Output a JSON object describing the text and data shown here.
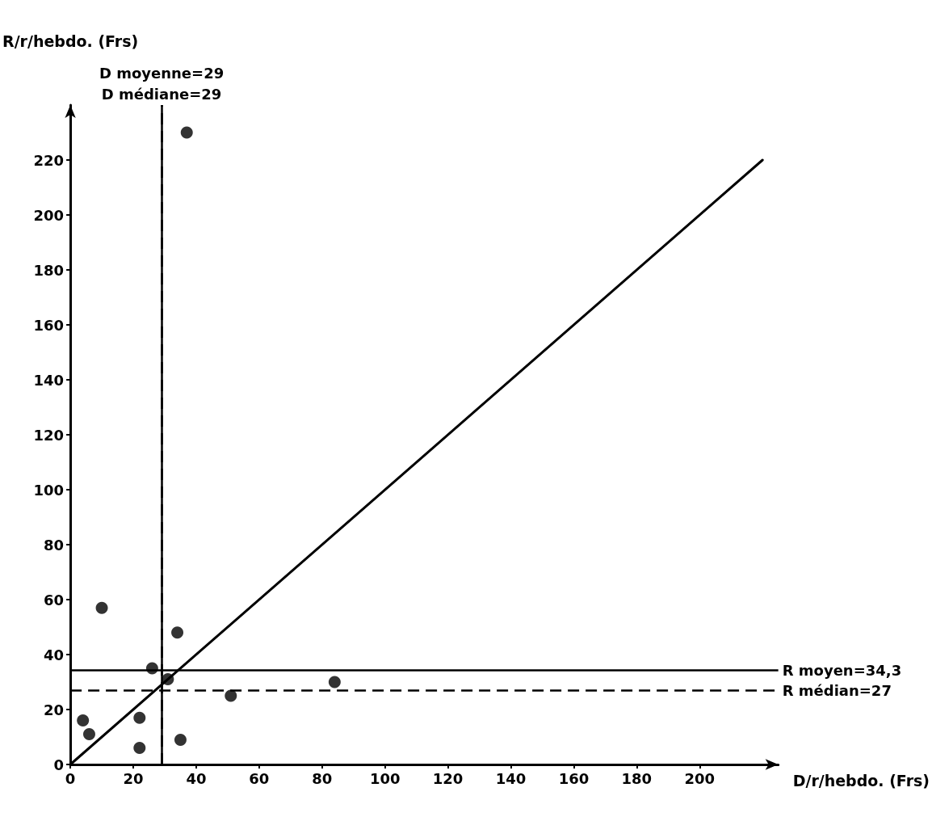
{
  "chart_data": {
    "type": "scatter",
    "xlabel": "D/r/hebdo. (Frs)",
    "ylabel": "R/r/hebdo. (Frs)",
    "series": [
      {
        "color": "#000000",
        "x": [
          37,
          10,
          34,
          26,
          31,
          84,
          51,
          4,
          22,
          6,
          22,
          35
        ],
        "values": [
          230,
          57,
          48,
          35,
          31,
          30,
          25,
          16,
          17,
          11,
          6,
          9
        ]
      },
      {
        "type": "line",
        "color": "#000000",
        "x": [
          0,
          220
        ],
        "values": [
          0,
          220
        ],
        "marker": "none",
        "line_style": "solid"
      }
    ],
    "marker": "circle",
    "xlim": [
      0,
      225
    ],
    "ylim": [
      0,
      240
    ],
    "xticks": [
      0,
      20,
      40,
      60,
      80,
      100,
      120,
      140,
      160,
      180,
      200
    ],
    "yticks": [
      0,
      20,
      40,
      60,
      80,
      100,
      120,
      140,
      160,
      180,
      200,
      220
    ],
    "grid": false,
    "ref_lines": [
      {
        "axis": "x",
        "value": 29,
        "label": "D moyenne=29",
        "line_style": "solid",
        "color": "#000000"
      },
      {
        "axis": "x",
        "value": 29,
        "label": "D médiane=29",
        "line_style": "dashed",
        "color": "#000000"
      },
      {
        "axis": "y",
        "value": 34.3,
        "label": "R moyen=34,3",
        "line_style": "solid",
        "color": "#000000"
      },
      {
        "axis": "y",
        "value": 27,
        "label": "R médian=27",
        "line_style": "dashed",
        "color": "#000000"
      }
    ]
  }
}
